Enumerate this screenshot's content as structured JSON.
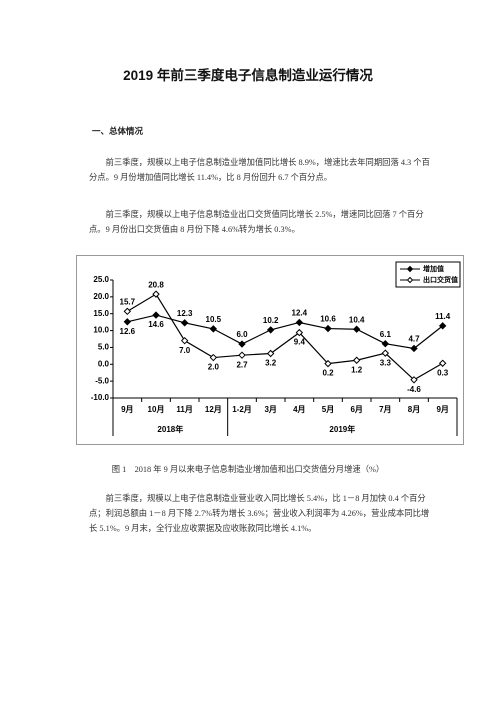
{
  "header": {
    "title": "2019 年前三季度电子信息制造业运行情况"
  },
  "section": {
    "heading": "一、总体情况"
  },
  "paragraphs": [
    "前三季度，规模以上电子信息制造业增加值同比增长 8.9%，增速比去年同期回落 4.3 个百分点。9 月份增加值同比增长 11.4%，比 8 月份回升 6.7 个百分点。",
    "前三季度，规模以上电子信息制造业出口交货值同比增长 2.5%，增速同比回落 7 个百分点。9 月份出口交货值由 8 月份下降 4.6%转为增长 0.3%。"
  ],
  "caption": "图 1　2018 年 9 月以来电子信息制造业增加值和出口交货值分月增速（%）",
  "closing": "前三季度，规模以上电子信息制造业营业收入同比增长 5.4%，比 1－8 月加快 0.4 个百分点；利润总额由 1－8 月下降 2.7%转为增长 3.6%；营业收入利润率为 4.26%，营业成本同比增长 5.1%。9 月末，全行业应收票据及应收账款同比增长 4.1%。",
  "chart_data": {
    "type": "line",
    "categories": [
      "9月",
      "10月",
      "11月",
      "12月",
      "1-2月",
      "3月",
      "4月",
      "5月",
      "6月",
      "7月",
      "8月",
      "9月"
    ],
    "groups": [
      "2018年",
      "2019年"
    ],
    "series": [
      {
        "name": "增加值",
        "color": "#000000",
        "marker": "filled",
        "values": [
          12.6,
          14.6,
          12.3,
          10.5,
          6.0,
          10.2,
          12.4,
          10.6,
          10.4,
          6.1,
          4.7,
          11.4
        ],
        "value_labels": [
          "12.6",
          "14.6",
          "12.3",
          "10.5",
          "6.0",
          "10.2",
          "12.4",
          "10.6",
          "10.4",
          "6.1",
          "4.7",
          "11.4"
        ]
      },
      {
        "name": "出口交货值",
        "color": "#000000",
        "marker": "open",
        "values": [
          15.7,
          20.8,
          7.0,
          2.0,
          2.7,
          3.2,
          9.4,
          0.2,
          1.2,
          3.3,
          -4.6,
          0.3
        ],
        "value_labels": [
          "15.7",
          "20.8",
          "7.0",
          "2.0",
          "2.7",
          "3.2",
          "9.4",
          "0.2",
          "1.2",
          "3.3",
          "-4.6",
          "0.3"
        ]
      }
    ],
    "ylim": [
      -10,
      25
    ],
    "yticks": [
      {
        "value": 25,
        "label": "25.0"
      },
      {
        "value": 20,
        "label": "20.0"
      },
      {
        "value": 15,
        "label": "15.0"
      },
      {
        "value": 10,
        "label": "10.0"
      },
      {
        "value": 5,
        "label": "5.0"
      },
      {
        "value": 0,
        "label": "0.0"
      },
      {
        "value": -5,
        "label": "-5.0"
      },
      {
        "value": -10,
        "label": "-10.0"
      }
    ],
    "grid": false,
    "legend": "top-right"
  }
}
